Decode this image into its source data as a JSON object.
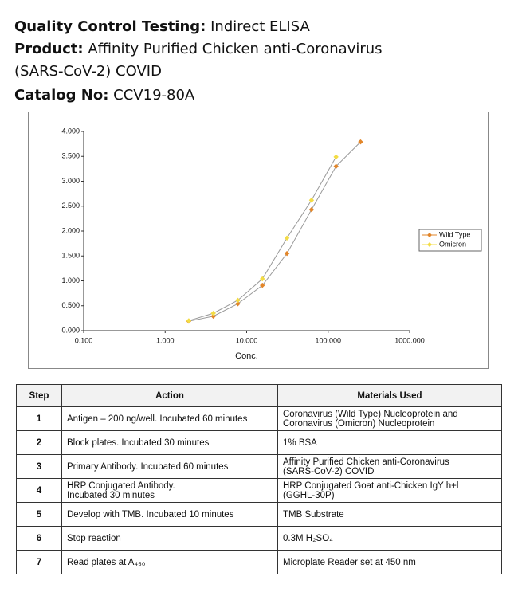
{
  "header": {
    "qc_label": "Quality Control Testing:",
    "qc_value": "Indirect ELISA",
    "product_label": "Product:",
    "product_value": "Affinity Purified Chicken anti-Coronavirus\n(SARS-CoV-2) COVID",
    "catalog_label": "Catalog No:",
    "catalog_value": "CCV19-80A"
  },
  "chart_data": {
    "type": "line",
    "xlabel": "Conc.",
    "xscale": "log",
    "xlim": [
      0.1,
      1000
    ],
    "xticks": [
      {
        "value": 0.1,
        "label": "0.100"
      },
      {
        "value": 1,
        "label": "1.000"
      },
      {
        "value": 10,
        "label": "10.000"
      },
      {
        "value": 100,
        "label": "100.000"
      },
      {
        "value": 1000,
        "label": "1000.000"
      }
    ],
    "ylim": [
      0,
      4
    ],
    "yticks": [
      {
        "value": 0,
        "label": "0.000"
      },
      {
        "value": 0.5,
        "label": "0.500"
      },
      {
        "value": 1,
        "label": "1.000"
      },
      {
        "value": 1.5,
        "label": "1.500"
      },
      {
        "value": 2,
        "label": "2.000"
      },
      {
        "value": 2.5,
        "label": "2.500"
      },
      {
        "value": 3,
        "label": "3.000"
      },
      {
        "value": 3.5,
        "label": "3.500"
      },
      {
        "value": 4,
        "label": "4.000"
      }
    ],
    "legend": "right",
    "series": [
      {
        "name": "Wild Type",
        "color": "#e2862a",
        "x": [
          1.95,
          3.9,
          7.8,
          15.6,
          31.25,
          62.5,
          125,
          250
        ],
        "values": [
          0.19,
          0.29,
          0.54,
          0.91,
          1.55,
          2.43,
          3.3,
          3.79
        ]
      },
      {
        "name": "Omicron",
        "color": "#f3dc45",
        "x": [
          1.95,
          3.9,
          7.8,
          15.6,
          31.25,
          62.5,
          125
        ],
        "values": [
          0.2,
          0.35,
          0.61,
          1.04,
          1.86,
          2.62,
          3.49
        ]
      }
    ]
  },
  "table": {
    "columns": [
      "Step",
      "Action",
      "Materials Used"
    ],
    "rows": [
      [
        "1",
        "Antigen – 200 ng/well. Incubated 60 minutes",
        "Coronavirus (Wild Type) Nucleoprotein and\nCoronavirus (Omicron) Nucleoprotein"
      ],
      [
        "2",
        "Block plates. Incubated 30 minutes",
        "1% BSA"
      ],
      [
        "3",
        "Primary Antibody. Incubated 60 minutes",
        "Affinity Purified Chicken anti-Coronavirus\n(SARS-CoV-2) COVID"
      ],
      [
        "4",
        "HRP Conjugated Antibody.\nIncubated 30 minutes",
        "HRP Conjugated Goat anti-Chicken IgY h+l\n(GGHL-30P)"
      ],
      [
        "5",
        "Develop with TMB. Incubated 10 minutes",
        "TMB Substrate"
      ],
      [
        "6",
        "Stop reaction",
        "0.3M H₂SO₄"
      ],
      [
        "7",
        "Read plates at A₄₅₀",
        "Microplate Reader set at 450 nm"
      ]
    ]
  }
}
